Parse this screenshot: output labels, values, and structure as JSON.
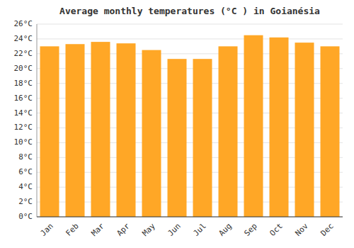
{
  "chart_data": {
    "type": "bar",
    "title": "Average monthly temperatures (°C ) in Goianésia",
    "categories": [
      "Jan",
      "Feb",
      "Mar",
      "Apr",
      "May",
      "Jun",
      "Jul",
      "Aug",
      "Sep",
      "Oct",
      "Nov",
      "Dec"
    ],
    "values": [
      23.0,
      23.3,
      23.6,
      23.4,
      22.5,
      21.3,
      21.3,
      23.0,
      24.5,
      24.2,
      23.5,
      23.0
    ],
    "color": "#FFA726",
    "ylim": [
      0,
      26
    ],
    "yticks": [
      {
        "value": 0,
        "label": "0°C"
      },
      {
        "value": 2,
        "label": "2°C"
      },
      {
        "value": 4,
        "label": "4°C"
      },
      {
        "value": 6,
        "label": "6°C"
      },
      {
        "value": 8,
        "label": "8°C"
      },
      {
        "value": 10,
        "label": "10°C"
      },
      {
        "value": 12,
        "label": "12°C"
      },
      {
        "value": 14,
        "label": "14°C"
      },
      {
        "value": 16,
        "label": "16°C"
      },
      {
        "value": 18,
        "label": "18°C"
      },
      {
        "value": 20,
        "label": "20°C"
      },
      {
        "value": 22,
        "label": "22°C"
      },
      {
        "value": 24,
        "label": "24°C"
      },
      {
        "value": 26,
        "label": "26°C"
      }
    ],
    "grid": true
  }
}
